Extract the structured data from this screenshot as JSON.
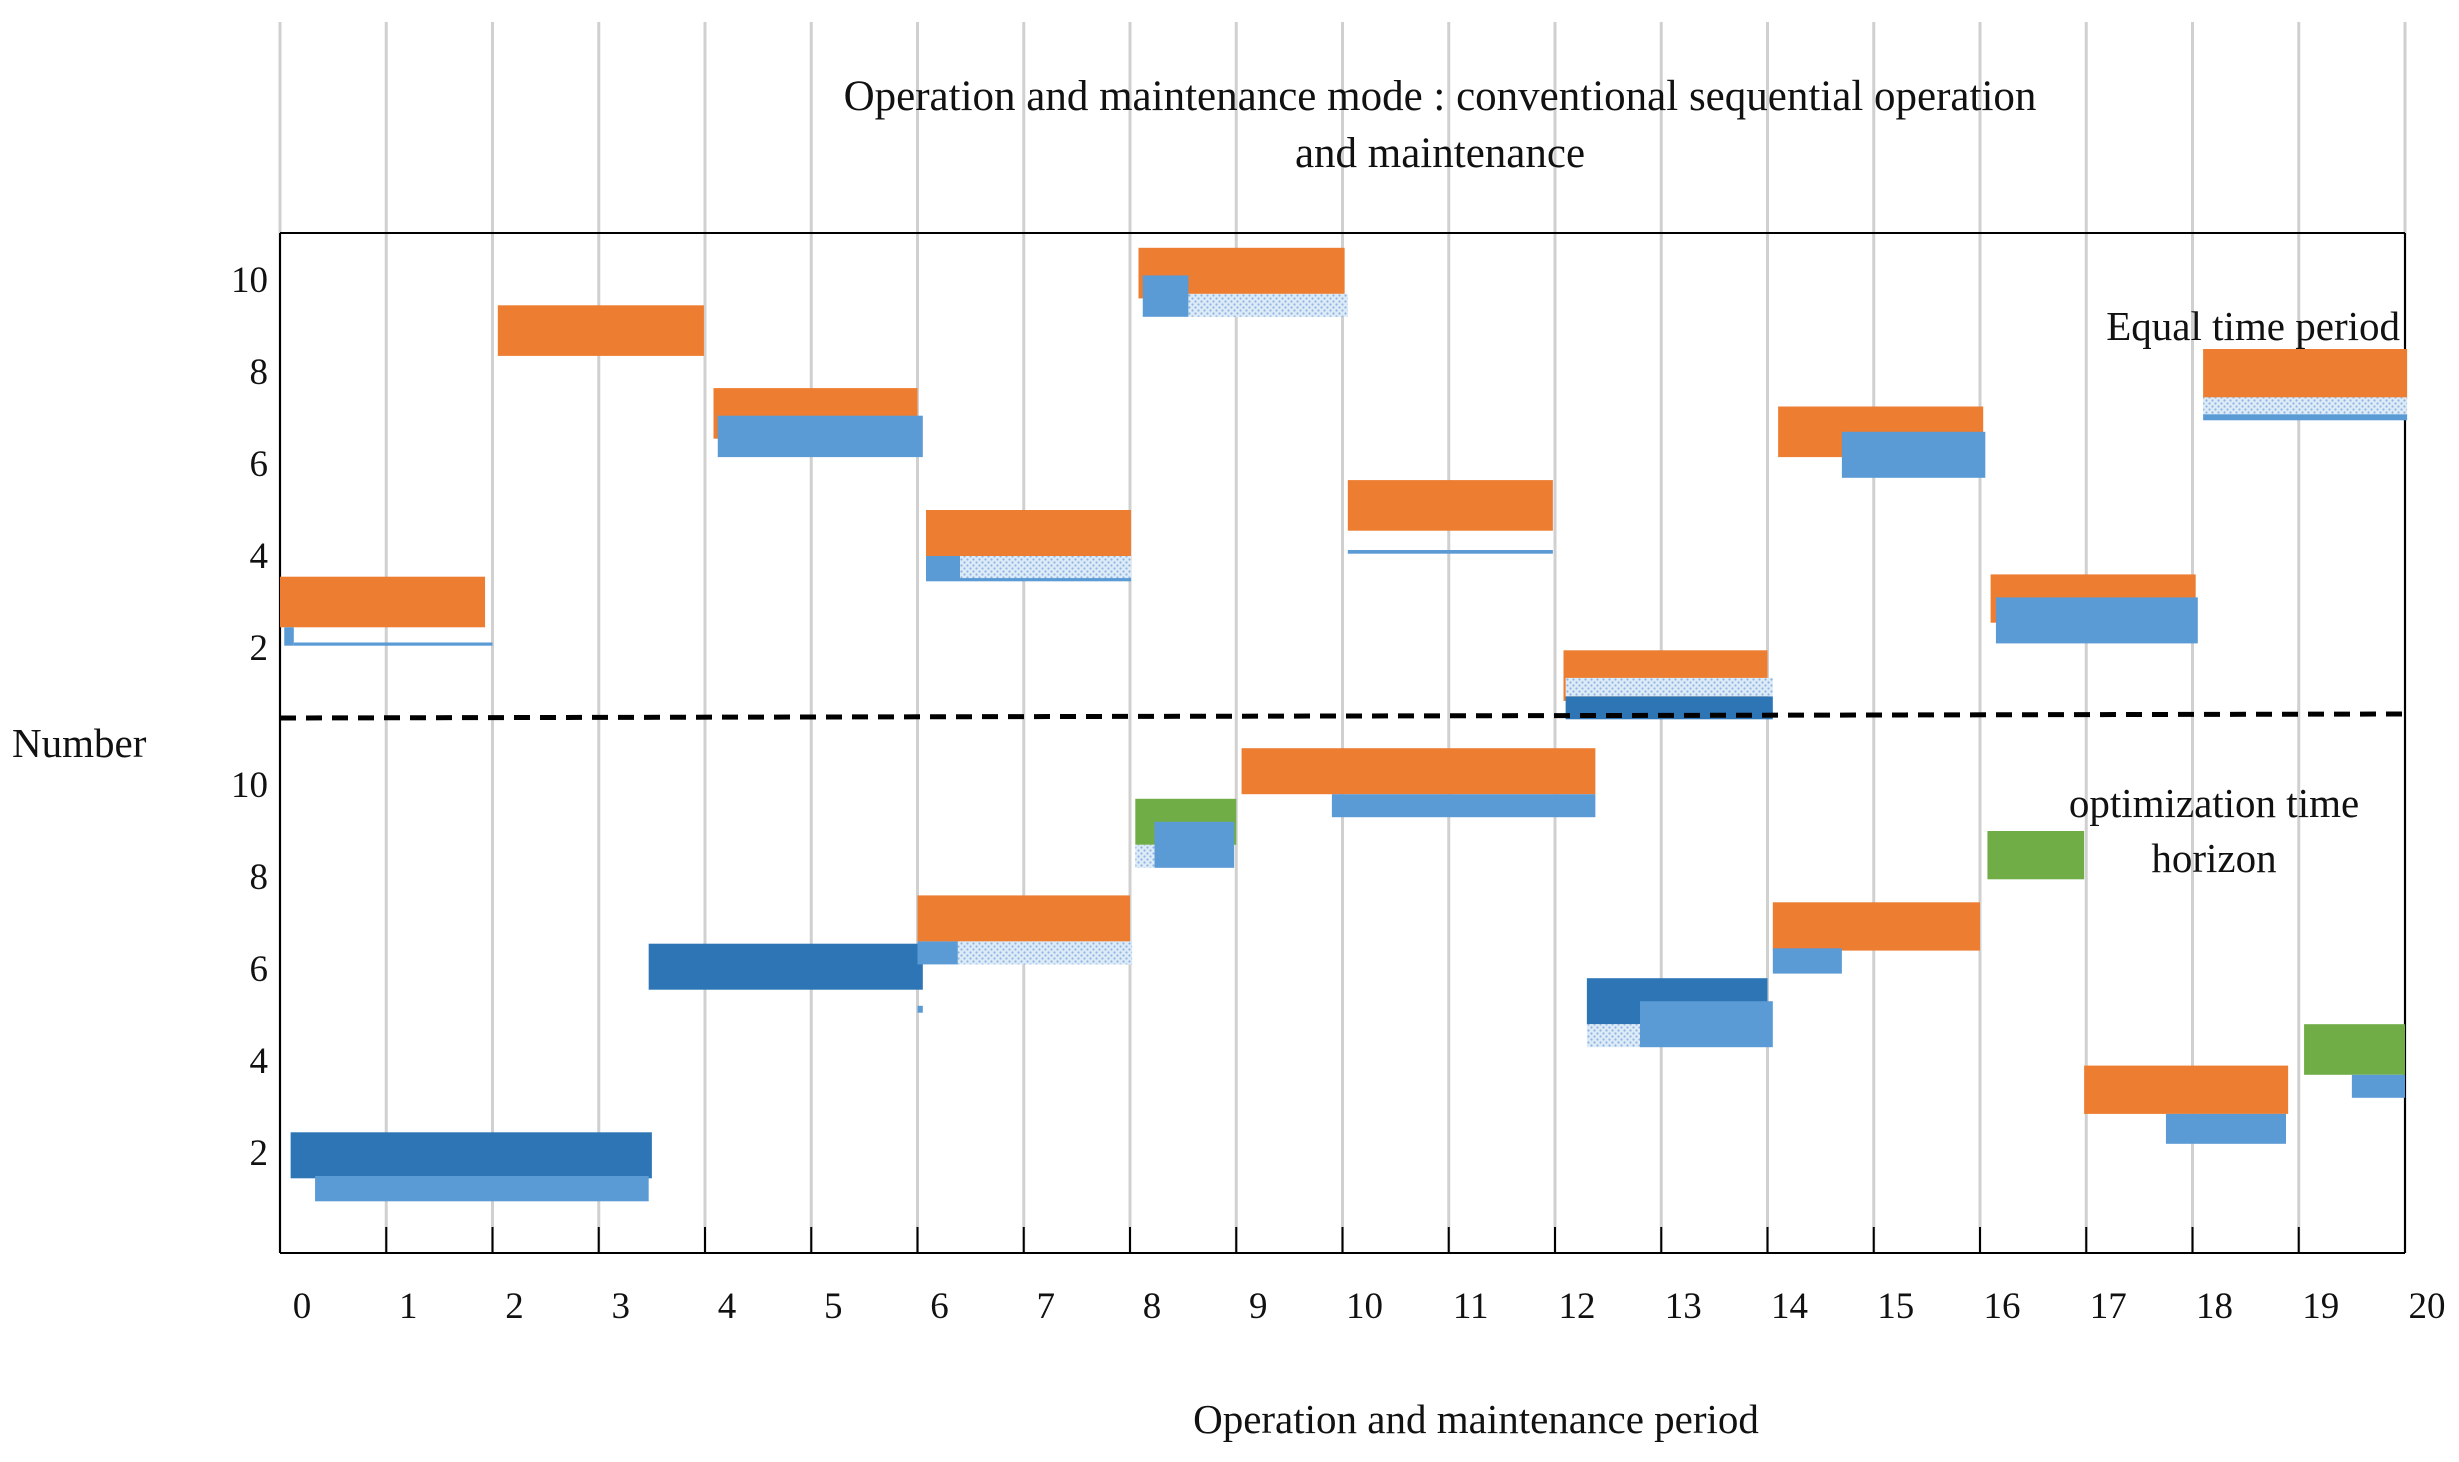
{
  "chart_data": {
    "type": "gantt-bar",
    "title": "Operation and maintenance mode : conventional sequential operation and maintenance",
    "title_lines": [
      "Operation and maintenance mode : conventional sequential operation",
      "and maintenance"
    ],
    "xlabel": "Operation and maintenance period",
    "ylabel": "Number",
    "x_ticks": [
      "0",
      "1",
      "2",
      "3",
      "4",
      "5",
      "6",
      "7",
      "8",
      "9",
      "10",
      "11",
      "12",
      "13",
      "14",
      "15",
      "16",
      "17",
      "18",
      "19",
      "20"
    ],
    "xlim": [
      0,
      20
    ],
    "grid": "vertical",
    "colors": {
      "orange": "#ED7D31",
      "light_blue": "#5B9BD5",
      "dark_blue": "#2E75B6",
      "green": "#70AD47",
      "dotted_blue": "#BDD7EE"
    },
    "panels": [
      {
        "label": "Equal time period",
        "y_ticks": [
          "2",
          "4",
          "6",
          "8",
          "10"
        ],
        "ylim": [
          0.6,
          11
        ],
        "bars": [
          {
            "color": "orange",
            "x0": 0,
            "x1": 1.93,
            "y0": 2.45,
            "y1": 3.55
          },
          {
            "color": "light_blue",
            "x0": 0.04,
            "x1": 0.13,
            "y0": 2.05,
            "y1": 2.45
          },
          {
            "color": "light_blue",
            "x0": 0.13,
            "x1": 2,
            "y0": 2.05,
            "y1": 2.12
          },
          {
            "color": "orange",
            "x0": 2.05,
            "x1": 3.99,
            "y0": 8.35,
            "y1": 9.45
          },
          {
            "color": "orange",
            "x0": 4.08,
            "x1": 6,
            "y0": 6.55,
            "y1": 7.65
          },
          {
            "color": "light_blue",
            "x0": 4.12,
            "x1": 6.05,
            "y0": 6.15,
            "y1": 7.05
          },
          {
            "color": "orange",
            "x0": 6.08,
            "x1": 8.01,
            "y0": 3.9,
            "y1": 5.0
          },
          {
            "color": "light_blue",
            "x0": 6.08,
            "x1": 6.4,
            "y0": 3.45,
            "y1": 4.0
          },
          {
            "color": "dotted_blue",
            "x0": 6.4,
            "x1": 8.01,
            "y0": 3.5,
            "y1": 4.0
          },
          {
            "color": "light_blue",
            "x0": 6.4,
            "x1": 8.01,
            "y0": 3.45,
            "y1": 3.52
          },
          {
            "color": "orange",
            "x0": 8.08,
            "x1": 10.02,
            "y0": 9.6,
            "y1": 10.7
          },
          {
            "color": "light_blue",
            "x0": 8.12,
            "x1": 8.55,
            "y0": 9.2,
            "y1": 10.1
          },
          {
            "color": "dotted_blue",
            "x0": 8.55,
            "x1": 10.05,
            "y0": 9.2,
            "y1": 9.7
          },
          {
            "color": "orange",
            "x0": 10.05,
            "x1": 11.98,
            "y0": 4.55,
            "y1": 5.65
          },
          {
            "color": "light_blue",
            "x0": 10.05,
            "x1": 11.98,
            "y0": 4.05,
            "y1": 4.13
          },
          {
            "color": "orange",
            "x0": 12.08,
            "x1": 14.0,
            "y0": 0.85,
            "y1": 1.95
          },
          {
            "color": "dark_blue",
            "x0": 12.1,
            "x1": 14.05,
            "y0": 0.45,
            "y1": 0.95
          },
          {
            "color": "dotted_blue",
            "x0": 12.1,
            "x1": 14.05,
            "y0": 0.95,
            "y1": 1.35
          },
          {
            "color": "orange",
            "x0": 14.1,
            "x1": 16.03,
            "y0": 6.15,
            "y1": 7.25
          },
          {
            "color": "light_blue",
            "x0": 14.7,
            "x1": 16.05,
            "y0": 5.7,
            "y1": 6.7
          },
          {
            "color": "orange",
            "x0": 16.1,
            "x1": 18.03,
            "y0": 2.55,
            "y1": 3.6
          },
          {
            "color": "light_blue",
            "x0": 16.15,
            "x1": 18.05,
            "y0": 2.1,
            "y1": 3.1
          },
          {
            "color": "orange",
            "x0": 18.1,
            "x1": 20.02,
            "y0": 7.4,
            "y1": 8.5
          },
          {
            "color": "dotted_blue",
            "x0": 18.1,
            "x1": 20.02,
            "y0": 7.05,
            "y1": 7.45
          },
          {
            "color": "light_blue",
            "x0": 18.1,
            "x1": 20.02,
            "y0": 6.95,
            "y1": 7.08
          }
        ]
      },
      {
        "label_lines": [
          "optimization time",
          "horizon"
        ],
        "label": "optimization time horizon",
        "y_ticks": [
          "2",
          "4",
          "6",
          "8",
          "10"
        ],
        "ylim": [
          -0.05,
          11
        ],
        "bars": [
          {
            "color": "dark_blue",
            "x0": 0.1,
            "x1": 3.5,
            "y0": 1.45,
            "y1": 2.45
          },
          {
            "color": "light_blue",
            "x0": 0.33,
            "x1": 3.47,
            "y0": 0.95,
            "y1": 1.5
          },
          {
            "color": "dark_blue",
            "x0": 3.47,
            "x1": 6.05,
            "y0": 5.55,
            "y1": 6.55
          },
          {
            "color": "light_blue",
            "x0": 6.0,
            "x1": 6.05,
            "y0": 5.05,
            "y1": 5.2
          },
          {
            "color": "orange",
            "x0": 6.0,
            "x1": 8.0,
            "y0": 6.6,
            "y1": 7.6
          },
          {
            "color": "light_blue",
            "x0": 6.0,
            "x1": 6.38,
            "y0": 6.1,
            "y1": 6.6
          },
          {
            "color": "dotted_blue",
            "x0": 6.38,
            "x1": 8.02,
            "y0": 6.1,
            "y1": 6.6
          },
          {
            "color": "green",
            "x0": 8.05,
            "x1": 9.0,
            "y0": 8.7,
            "y1": 9.7
          },
          {
            "color": "light_blue",
            "x0": 8.23,
            "x1": 8.98,
            "y0": 8.2,
            "y1": 9.2
          },
          {
            "color": "dotted_blue",
            "x0": 8.05,
            "x1": 8.23,
            "y0": 8.2,
            "y1": 8.7
          },
          {
            "color": "orange",
            "x0": 9.05,
            "x1": 12.38,
            "y0": 9.8,
            "y1": 10.8
          },
          {
            "color": "light_blue",
            "x0": 9.9,
            "x1": 12.38,
            "y0": 9.3,
            "y1": 9.8
          },
          {
            "color": "dark_blue",
            "x0": 12.3,
            "x1": 14.0,
            "y0": 4.8,
            "y1": 5.8
          },
          {
            "color": "dotted_blue",
            "x0": 12.3,
            "x1": 12.8,
            "y0": 4.3,
            "y1": 4.8
          },
          {
            "color": "light_blue",
            "x0": 12.8,
            "x1": 14.05,
            "y0": 4.3,
            "y1": 5.3
          },
          {
            "color": "orange",
            "x0": 14.05,
            "x1": 16.0,
            "y0": 6.4,
            "y1": 7.45
          },
          {
            "color": "light_blue",
            "x0": 14.05,
            "x1": 14.7,
            "y0": 5.9,
            "y1": 6.45
          },
          {
            "color": "green",
            "x0": 16.07,
            "x1": 16.98,
            "y0": 7.95,
            "y1": 9.0
          },
          {
            "color": "orange",
            "x0": 16.98,
            "x1": 18.9,
            "y0": 2.85,
            "y1": 3.9
          },
          {
            "color": "light_blue",
            "x0": 17.75,
            "x1": 18.88,
            "y0": 2.2,
            "y1": 2.85
          },
          {
            "color": "green",
            "x0": 19.05,
            "x1": 20.0,
            "y0": 3.7,
            "y1": 4.8
          },
          {
            "color": "light_blue",
            "x0": 19.5,
            "x1": 20.0,
            "y0": 3.2,
            "y1": 3.7
          }
        ]
      }
    ]
  }
}
